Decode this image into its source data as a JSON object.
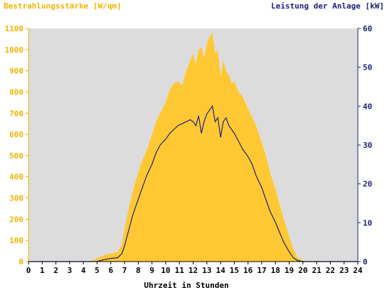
{
  "chart_data": {
    "type": "area",
    "left_axis_title": "Bestrahlungsstärke [W/qm]",
    "right_axis_title": "Leistung der Anlage [kW]",
    "xlabel": "Uhrzeit in Stunden",
    "xlim": [
      0,
      24
    ],
    "ylim_left": [
      0,
      1100
    ],
    "ylim_right": [
      0,
      60
    ],
    "x_ticks": [
      "0",
      "1",
      "2",
      "3",
      "4",
      "5",
      "6",
      "7",
      "8",
      "9",
      "10",
      "11",
      "12",
      "13",
      "14",
      "15",
      "16",
      "17",
      "18",
      "19",
      "20",
      "21",
      "22",
      "23",
      "24"
    ],
    "y_ticks_left": [
      "0",
      "100",
      "200",
      "300",
      "400",
      "500",
      "600",
      "700",
      "800",
      "900",
      "1000",
      "1100"
    ],
    "y_ticks_right": [
      "0",
      "10",
      "20",
      "30",
      "40",
      "50",
      "60"
    ],
    "colors": {
      "irradiance": "#ffc832",
      "power": "#1a237e",
      "plot_background": "#dcdcdc",
      "left_axis_text": "#f0b400",
      "right_axis_text": "#1a237e"
    },
    "series": [
      {
        "name": "Bestrahlungsstärke [W/qm]",
        "axis": "left",
        "x": [
          0,
          4.5,
          5,
          5.5,
          6,
          6.5,
          6.8,
          7,
          7.3,
          7.6,
          8,
          8.3,
          8.6,
          9,
          9.3,
          9.6,
          10,
          10.3,
          10.6,
          10.9,
          11.2,
          11.5,
          11.8,
          12,
          12.2,
          12.4,
          12.6,
          12.8,
          13,
          13.2,
          13.4,
          13.6,
          13.8,
          14,
          14.2,
          14.4,
          14.6,
          14.8,
          15,
          15.3,
          15.6,
          16,
          16.3,
          16.6,
          17,
          17.3,
          17.6,
          18,
          18.3,
          18.6,
          19,
          19.3,
          19.6,
          20,
          20.2,
          20.5,
          24
        ],
        "y": [
          0,
          0,
          15,
          30,
          38,
          45,
          80,
          150,
          250,
          330,
          420,
          480,
          520,
          600,
          660,
          700,
          750,
          810,
          840,
          850,
          830,
          900,
          950,
          980,
          930,
          1000,
          1010,
          960,
          1030,
          1060,
          1080,
          980,
          1000,
          870,
          950,
          900,
          880,
          840,
          850,
          800,
          780,
          720,
          680,
          640,
          560,
          500,
          420,
          340,
          270,
          200,
          120,
          60,
          20,
          5,
          0,
          0,
          0
        ]
      },
      {
        "name": "Leistung der Anlage [kW]",
        "axis": "right",
        "x": [
          0,
          5,
          5.5,
          6,
          6.5,
          6.8,
          7,
          7.3,
          7.6,
          8,
          8.3,
          8.6,
          9,
          9.3,
          9.6,
          10,
          10.3,
          10.6,
          10.9,
          11.2,
          11.5,
          11.8,
          12,
          12.2,
          12.4,
          12.6,
          12.8,
          13,
          13.2,
          13.4,
          13.6,
          13.8,
          14,
          14.2,
          14.4,
          14.6,
          14.8,
          15,
          15.3,
          15.6,
          16,
          16.3,
          16.6,
          17,
          17.3,
          17.6,
          18,
          18.3,
          18.6,
          19,
          19.3,
          19.6,
          20,
          20.5,
          24
        ],
        "y": [
          0,
          0,
          0.5,
          0.8,
          1,
          2,
          4,
          8,
          12,
          16,
          19,
          22,
          25,
          28,
          30,
          31.5,
          33,
          34,
          35,
          35.5,
          36,
          36.5,
          36,
          35,
          37.5,
          33,
          36,
          38,
          39,
          40,
          36,
          37,
          32,
          36,
          37,
          35,
          34,
          33,
          31,
          29,
          27,
          25,
          22,
          19,
          16,
          13,
          10,
          7.5,
          5,
          2.5,
          1,
          0.3,
          0,
          0,
          0
        ]
      }
    ]
  }
}
